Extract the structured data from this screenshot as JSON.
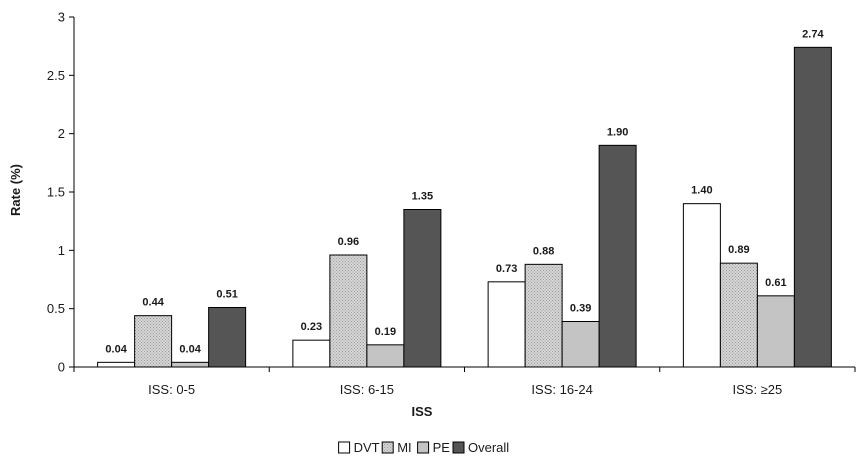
{
  "chart_data": {
    "type": "bar",
    "categories": [
      "ISS: 0-5",
      "ISS: 6-15",
      "ISS: 16-24",
      "ISS: ≥25"
    ],
    "series": [
      {
        "name": "DVT",
        "values": [
          0.04,
          0.23,
          0.73,
          1.4
        ],
        "labels": [
          "0.04",
          "0.23",
          "0.73",
          "1.40"
        ],
        "color": "#ffffff",
        "pattern": "none"
      },
      {
        "name": "MI",
        "values": [
          0.44,
          0.96,
          0.88,
          0.89
        ],
        "labels": [
          "0.44",
          "0.96",
          "0.88",
          "0.89"
        ],
        "color": "#d9d9d9",
        "pattern": "dots"
      },
      {
        "name": "PE",
        "values": [
          0.04,
          0.19,
          0.39,
          0.61
        ],
        "labels": [
          "0.04",
          "0.19",
          "0.39",
          "0.61"
        ],
        "color": "#c4c4c4",
        "pattern": "none"
      },
      {
        "name": "Overall",
        "values": [
          0.51,
          1.35,
          1.9,
          2.74
        ],
        "labels": [
          "0.51",
          "1.35",
          "1.90",
          "2.74"
        ],
        "color": "#555555",
        "pattern": "none"
      }
    ],
    "xlabel": "ISS",
    "ylabel": "Rate (%)",
    "ylim": [
      0,
      3
    ],
    "yticks": [
      "0",
      "0.5",
      "1",
      "1.5",
      "2",
      "2.5",
      "3"
    ],
    "legend_position": "bottom",
    "grid": false
  }
}
